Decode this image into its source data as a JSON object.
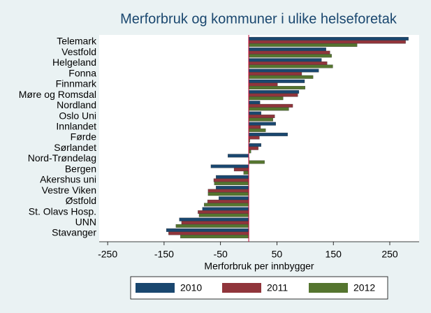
{
  "chart_data": {
    "type": "hbar",
    "title": "Merforbruk og kommuner i ulike helseforetak",
    "x_label": "Merforbruk per innbygger",
    "categories": [
      "Telemark",
      "Vestfold",
      "Helgeland",
      "Fonna",
      "Finnmark",
      "Møre og Romsdal",
      "Nordland",
      "Oslo Uni",
      "Innlandet",
      "Førde",
      "Sørlandet",
      "Nord-Trøndelag",
      "Bergen",
      "Akershus uni",
      "Vestre Viken",
      "Østfold",
      "St. Olavs Hosp.",
      "UNN",
      "Stavanger"
    ],
    "series": [
      {
        "name": "2010",
        "color": "#1a476f",
        "values": [
          283,
          137,
          129,
          124,
          99,
          89,
          20,
          22,
          48,
          69,
          22,
          -37,
          -67,
          -58,
          -58,
          -53,
          -82,
          -123,
          -146
        ]
      },
      {
        "name": "2011",
        "color": "#90353b",
        "values": [
          278,
          144,
          139,
          94,
          51,
          87,
          78,
          46,
          21,
          19,
          17,
          0,
          -26,
          -62,
          -72,
          -73,
          -90,
          -119,
          -142
        ]
      },
      {
        "name": "2012",
        "color": "#55752f",
        "values": [
          192,
          147,
          149,
          114,
          100,
          61,
          71,
          43,
          30,
          2,
          4,
          28,
          -9,
          -61,
          -72,
          -79,
          -88,
          -129,
          -121
        ]
      }
    ],
    "xlim": [
      -265,
      302
    ],
    "xticks": [
      -250,
      -150,
      -50,
      50,
      150,
      250
    ],
    "refline": 0,
    "refline_color": "#c10534",
    "legend": "bottom"
  }
}
